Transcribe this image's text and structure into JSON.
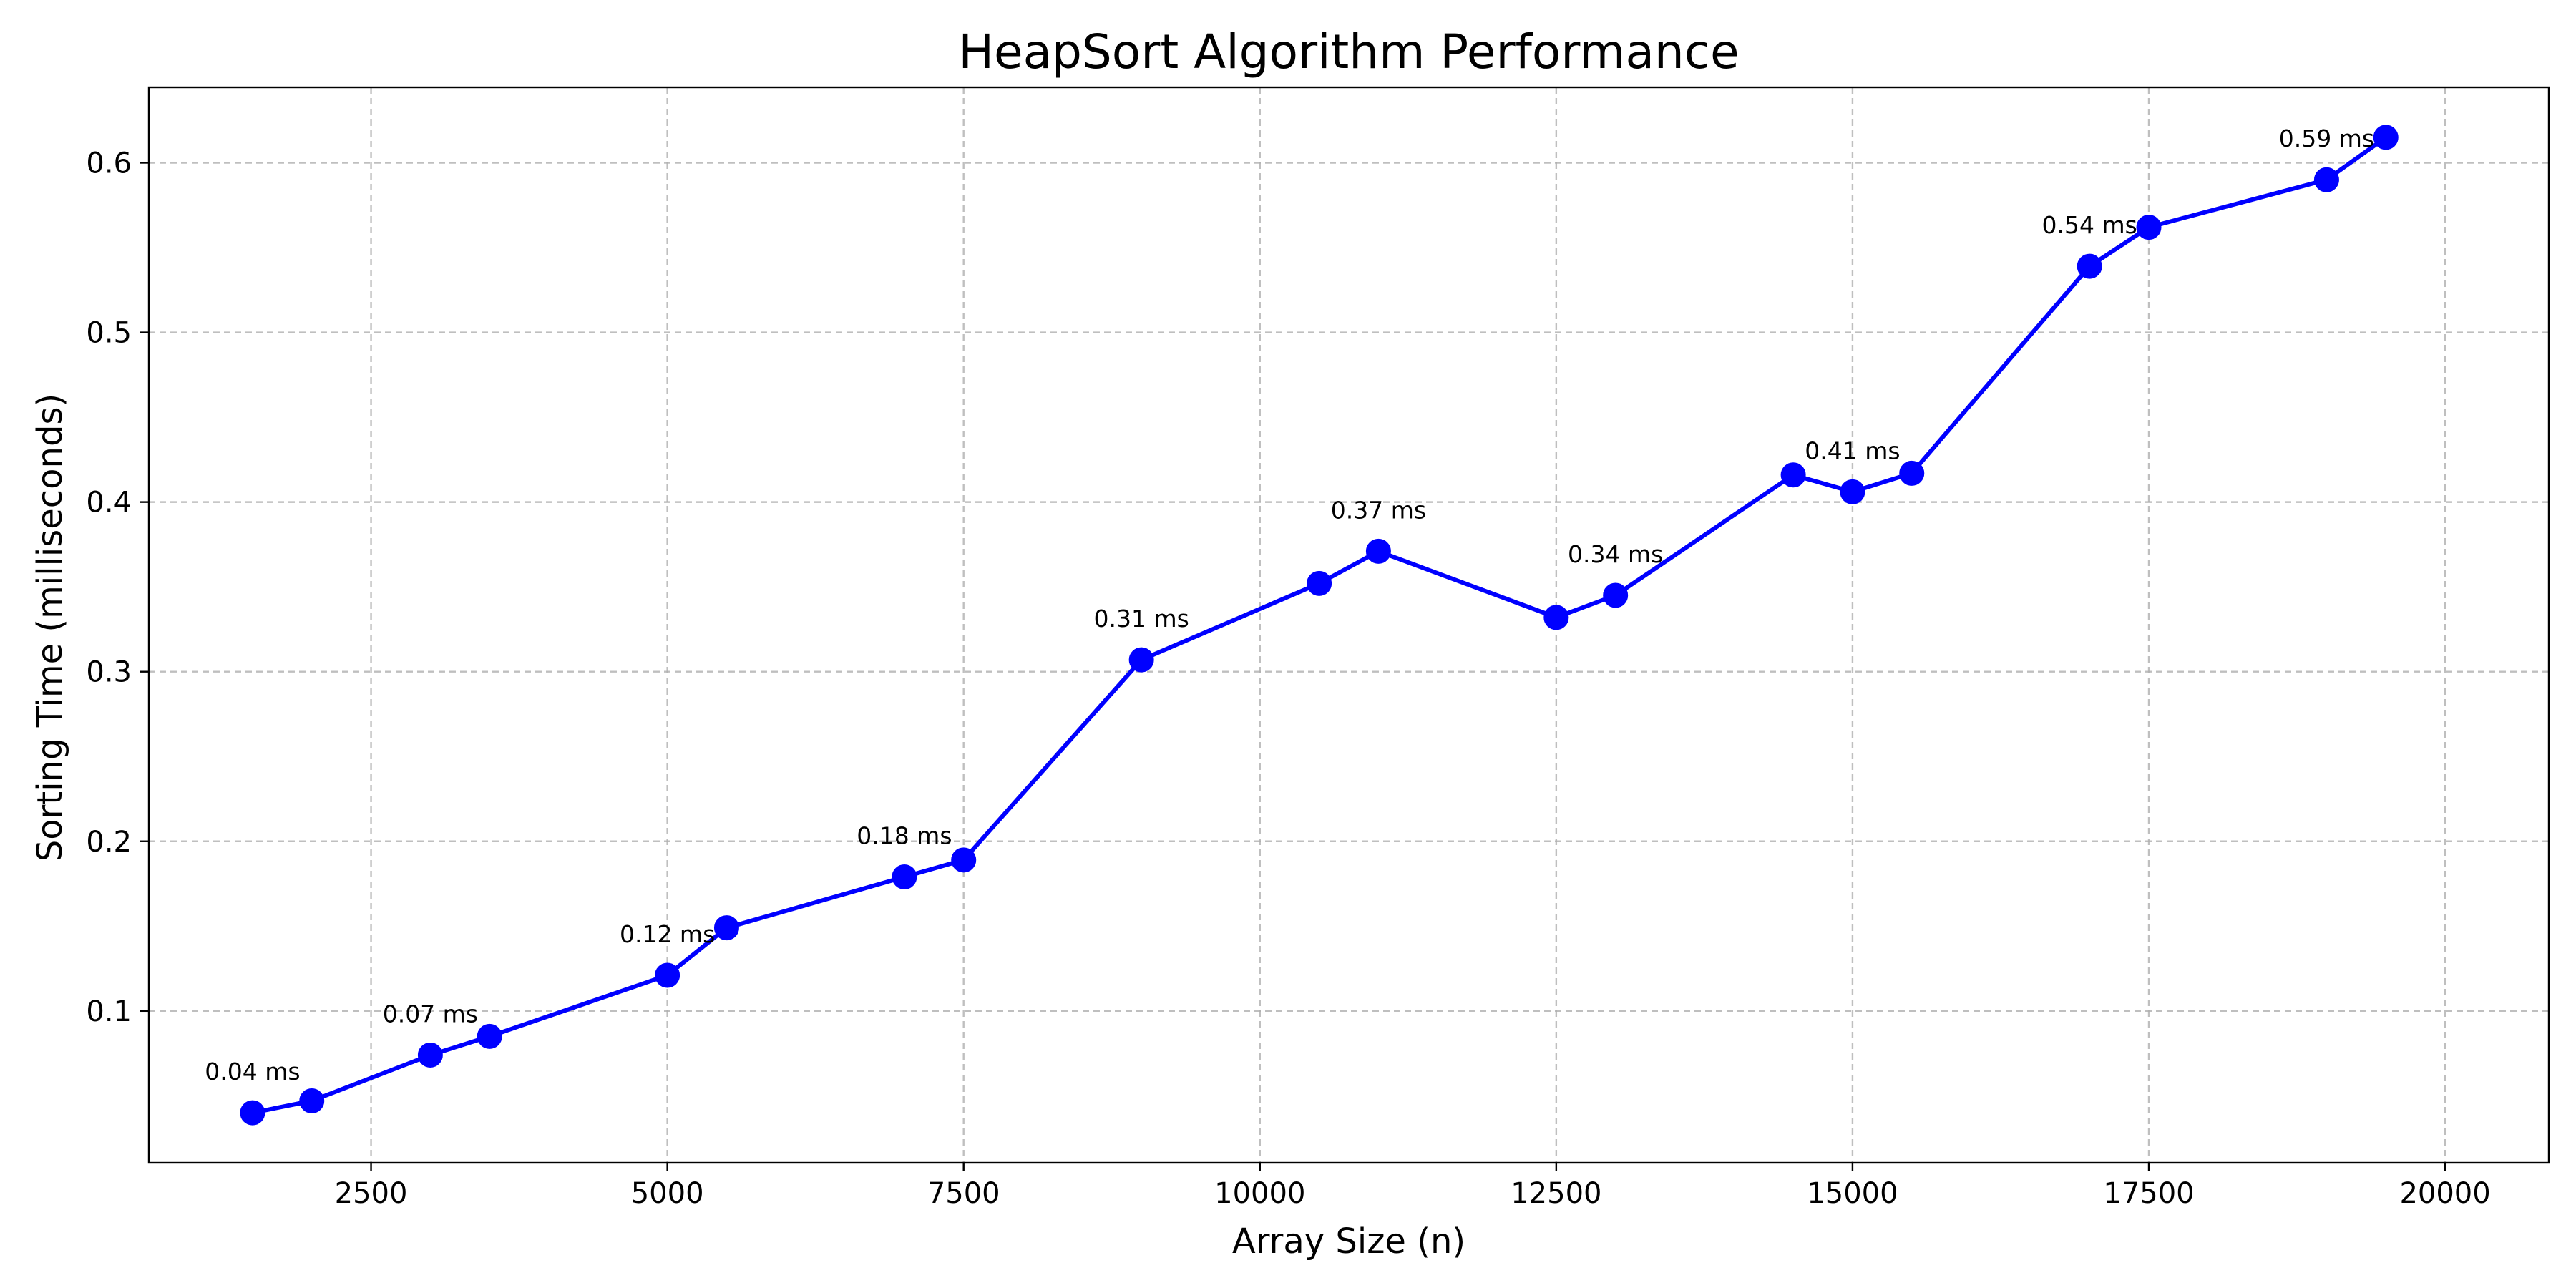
{
  "chart_data": {
    "type": "line",
    "title": "HeapSort Algorithm Performance",
    "xlabel": "Array Size (n)",
    "ylabel": "Sorting Time (milliseconds)",
    "xlim": [
      625,
      20875
    ],
    "ylim": [
      0.0105,
      0.6445
    ],
    "xticks": [
      2500,
      5000,
      7500,
      10000,
      12500,
      15000,
      17500,
      20000
    ],
    "xtick_labels": [
      "2500",
      "5000",
      "7500",
      "10000",
      "12500",
      "15000",
      "17500",
      "20000"
    ],
    "yticks": [
      0.1,
      0.2,
      0.3,
      0.4,
      0.5,
      0.6
    ],
    "ytick_labels": [
      "0.1",
      "0.2",
      "0.3",
      "0.4",
      "0.5",
      "0.6"
    ],
    "grid": true,
    "color": "#0000ff",
    "x": [
      1500,
      2000,
      3000,
      3500,
      5000,
      5500,
      7000,
      7500,
      9000,
      10500,
      11000,
      12500,
      13000,
      14500,
      15000,
      15500,
      17000,
      17500,
      19000,
      19500
    ],
    "values": [
      0.04,
      0.047,
      0.074,
      0.085,
      0.121,
      0.149,
      0.179,
      0.189,
      0.307,
      0.352,
      0.371,
      0.332,
      0.345,
      0.416,
      0.406,
      0.417,
      0.539,
      0.562,
      0.59,
      0.615
    ],
    "annotations": [
      {
        "x": 1500,
        "y": 0.04,
        "text": "0.04 ms"
      },
      {
        "x": 3000,
        "y": 0.074,
        "text": "0.07 ms"
      },
      {
        "x": 5000,
        "y": 0.121,
        "text": "0.12 ms"
      },
      {
        "x": 7000,
        "y": 0.179,
        "text": "0.18 ms"
      },
      {
        "x": 9000,
        "y": 0.307,
        "text": "0.31 ms"
      },
      {
        "x": 11000,
        "y": 0.371,
        "text": "0.37 ms"
      },
      {
        "x": 13000,
        "y": 0.345,
        "text": "0.34 ms"
      },
      {
        "x": 15000,
        "y": 0.406,
        "text": "0.41 ms"
      },
      {
        "x": 17000,
        "y": 0.539,
        "text": "0.54 ms"
      },
      {
        "x": 19000,
        "y": 0.59,
        "text": "0.59 ms"
      }
    ]
  }
}
